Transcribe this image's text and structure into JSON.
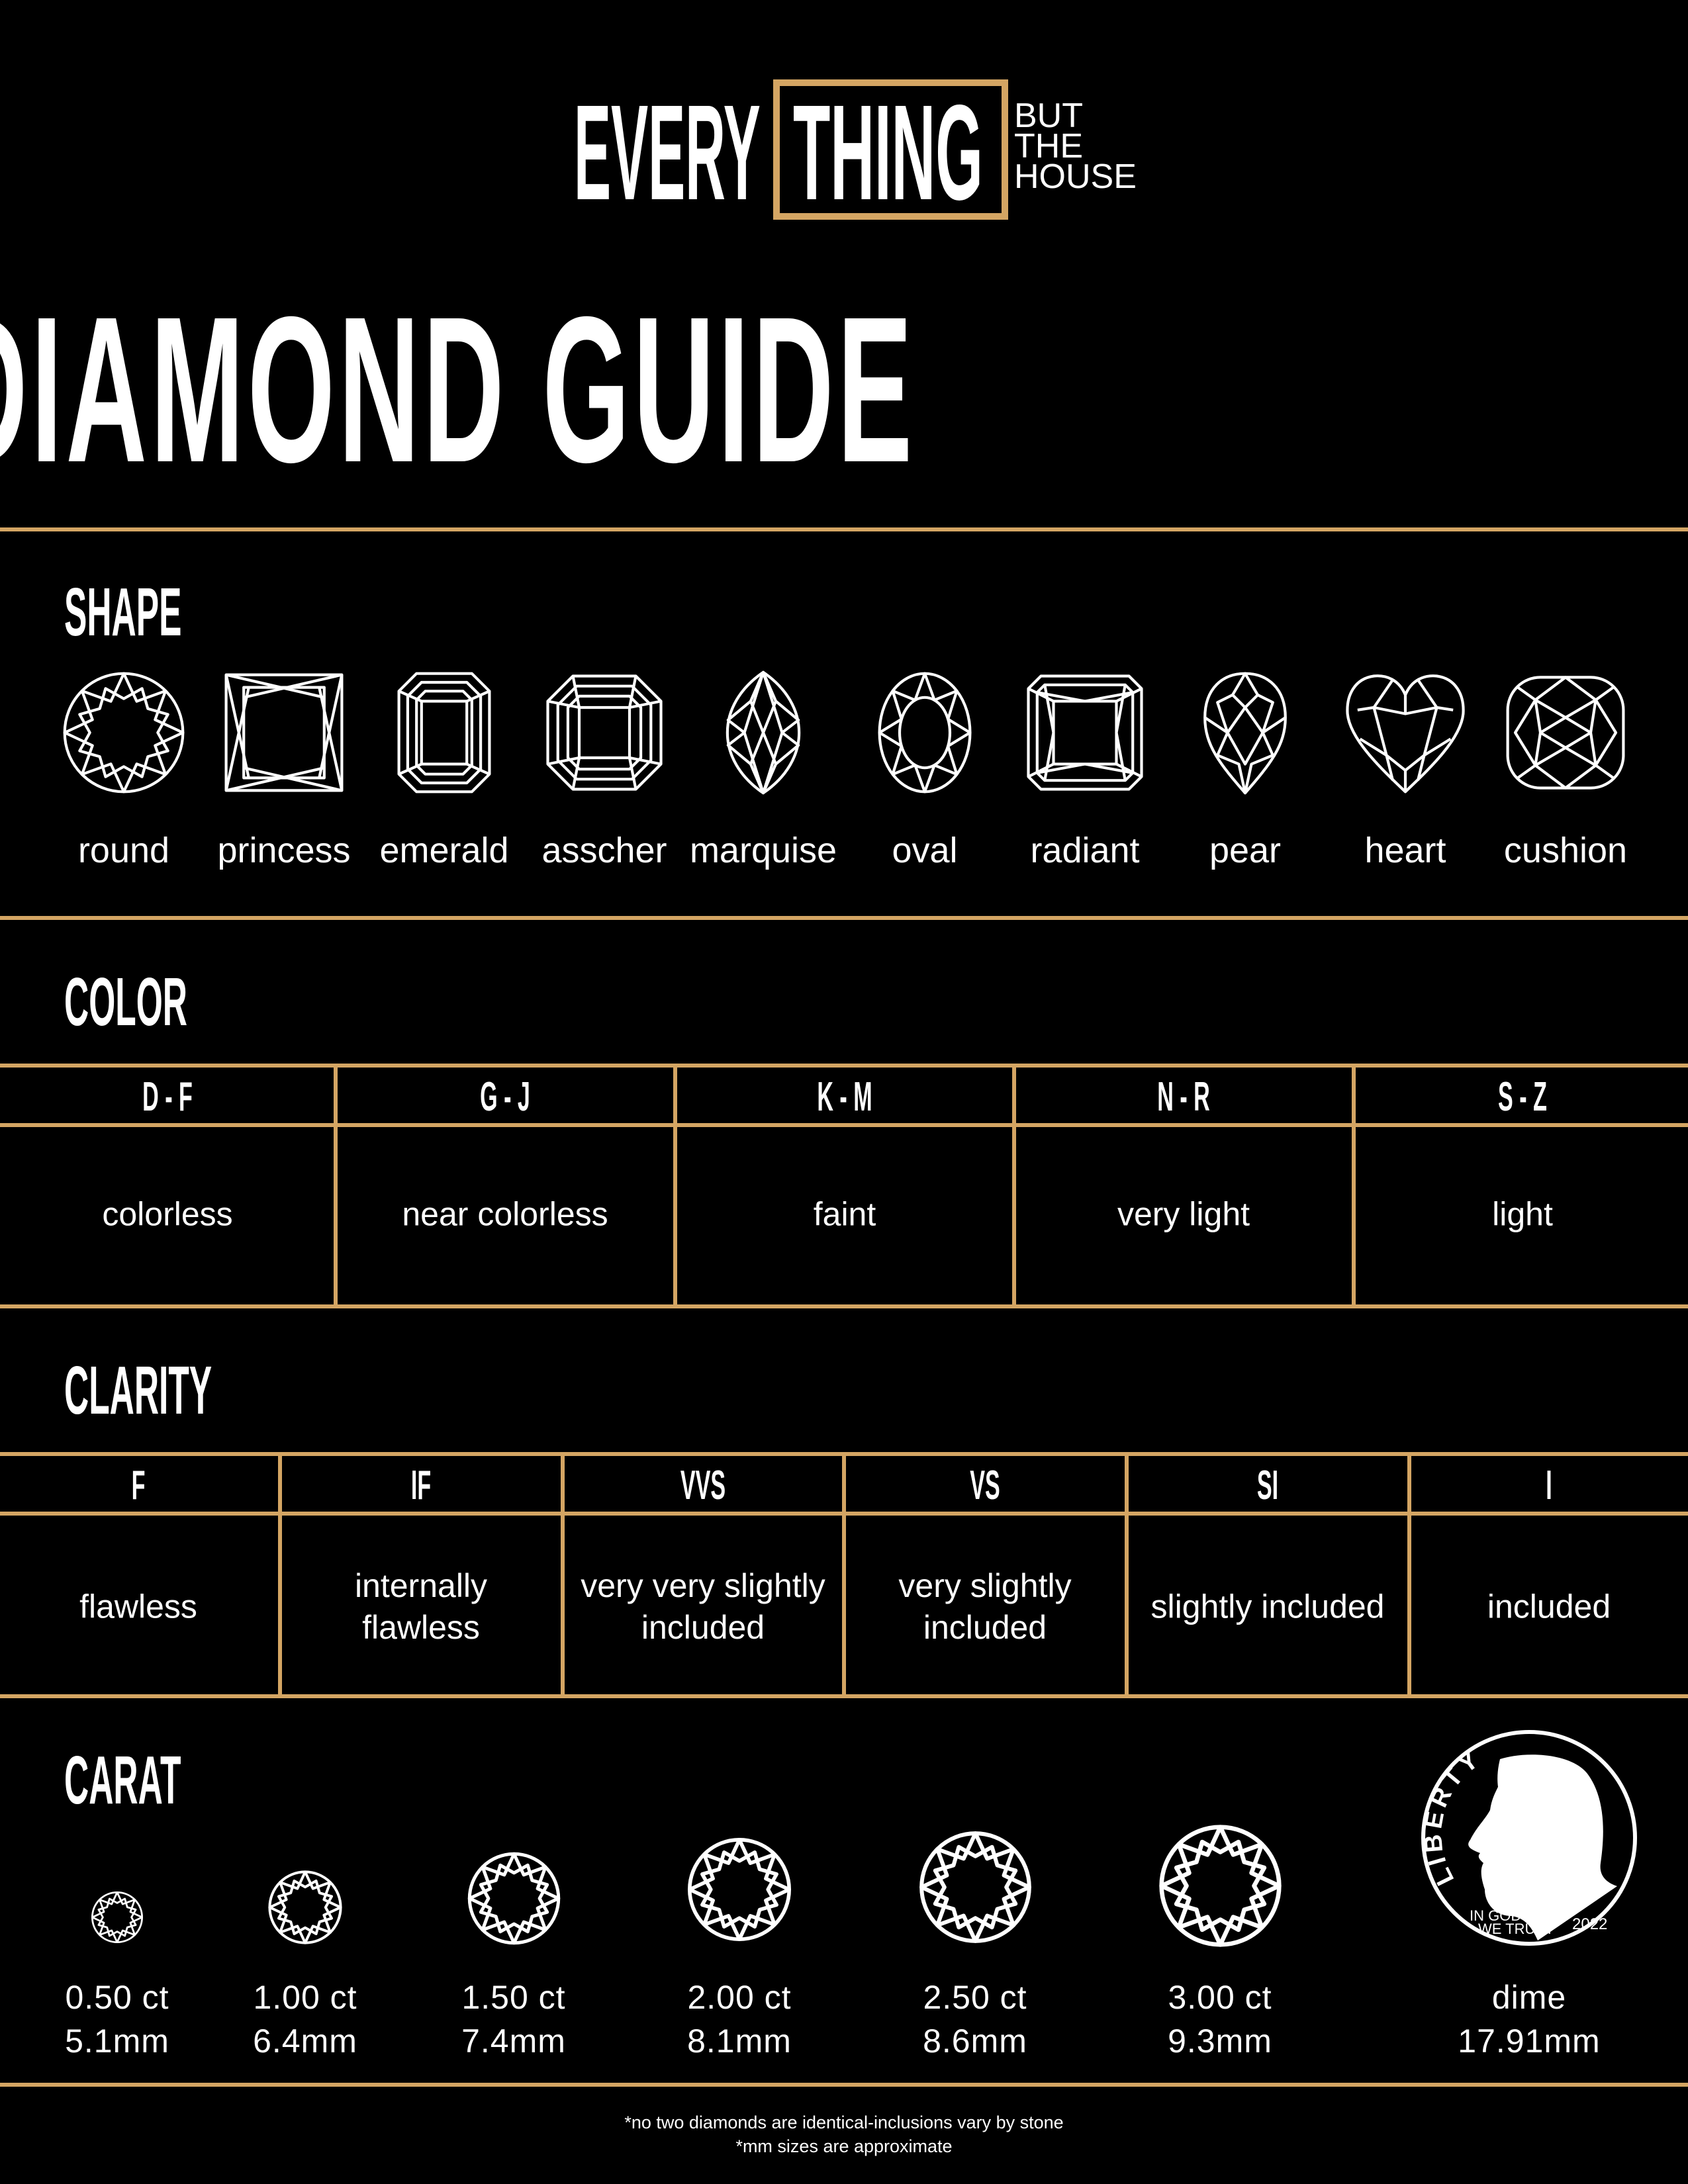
{
  "brand": {
    "every": "EVERY",
    "thing": "THING",
    "tag_lines": [
      "BUT",
      "THE",
      "HOUSE"
    ],
    "accent_color": "#d4a563"
  },
  "title": "DIAMOND GUIDE",
  "shape": {
    "heading": "SHAPE",
    "items": [
      {
        "label": "round",
        "icon": "round-diamond-icon"
      },
      {
        "label": "princess",
        "icon": "princess-diamond-icon"
      },
      {
        "label": "emerald",
        "icon": "emerald-diamond-icon"
      },
      {
        "label": "asscher",
        "icon": "asscher-diamond-icon"
      },
      {
        "label": "marquise",
        "icon": "marquise-diamond-icon"
      },
      {
        "label": "oval",
        "icon": "oval-diamond-icon"
      },
      {
        "label": "radiant",
        "icon": "radiant-diamond-icon"
      },
      {
        "label": "pear",
        "icon": "pear-diamond-icon"
      },
      {
        "label": "heart",
        "icon": "heart-diamond-icon"
      },
      {
        "label": "cushion",
        "icon": "cushion-diamond-icon"
      }
    ]
  },
  "color": {
    "heading": "COLOR",
    "columns": [
      {
        "grade": "D - F",
        "description": "colorless"
      },
      {
        "grade": "G - J",
        "description": "near colorless"
      },
      {
        "grade": "K - M",
        "description": "faint"
      },
      {
        "grade": "N - R",
        "description": "very light"
      },
      {
        "grade": "S - Z",
        "description": "light"
      }
    ]
  },
  "clarity": {
    "heading": "CLARITY",
    "columns": [
      {
        "grade": "F",
        "description": [
          "flawless"
        ]
      },
      {
        "grade": "IF",
        "description": [
          "internally",
          "flawless"
        ]
      },
      {
        "grade": "VVS",
        "description": [
          "very very slightly",
          "included"
        ]
      },
      {
        "grade": "VS",
        "description": [
          "very slightly",
          "included"
        ]
      },
      {
        "grade": "SI",
        "description": [
          "slightly included"
        ]
      },
      {
        "grade": "I",
        "description": [
          "included"
        ]
      }
    ]
  },
  "carat": {
    "heading": "CARAT",
    "items": [
      {
        "weight": "0.50 ct",
        "size": "5.1mm"
      },
      {
        "weight": "1.00 ct",
        "size": "6.4mm"
      },
      {
        "weight": "1.50 ct",
        "size": "7.4mm"
      },
      {
        "weight": "2.00 ct",
        "size": "8.1mm"
      },
      {
        "weight": "2.50 ct",
        "size": "8.6mm"
      },
      {
        "weight": "3.00 ct",
        "size": "9.3mm"
      }
    ],
    "dime": {
      "label": "dime",
      "size": "17.91mm",
      "coin_text": {
        "liberty": "LIBERTY",
        "motto_1": "IN GOD",
        "motto_2": "WE TRUST",
        "year": "2022"
      }
    }
  },
  "notes": [
    "*no two diamonds are identical-inclusions vary by stone",
    "*mm sizes are approximate"
  ]
}
